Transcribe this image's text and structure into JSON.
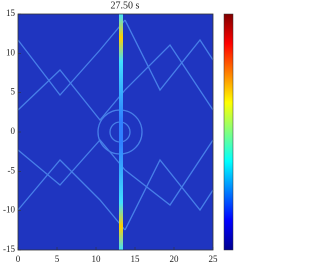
{
  "chart_data": {
    "type": "heatmap",
    "title": "27.50 s",
    "xlim": [
      0,
      25
    ],
    "ylim": [
      -15,
      15
    ],
    "xticks": [
      0,
      5,
      10,
      15,
      20,
      25
    ],
    "yticks": [
      -15,
      -10,
      -5,
      0,
      5,
      10,
      15
    ],
    "colormap": "jet"
  }
}
